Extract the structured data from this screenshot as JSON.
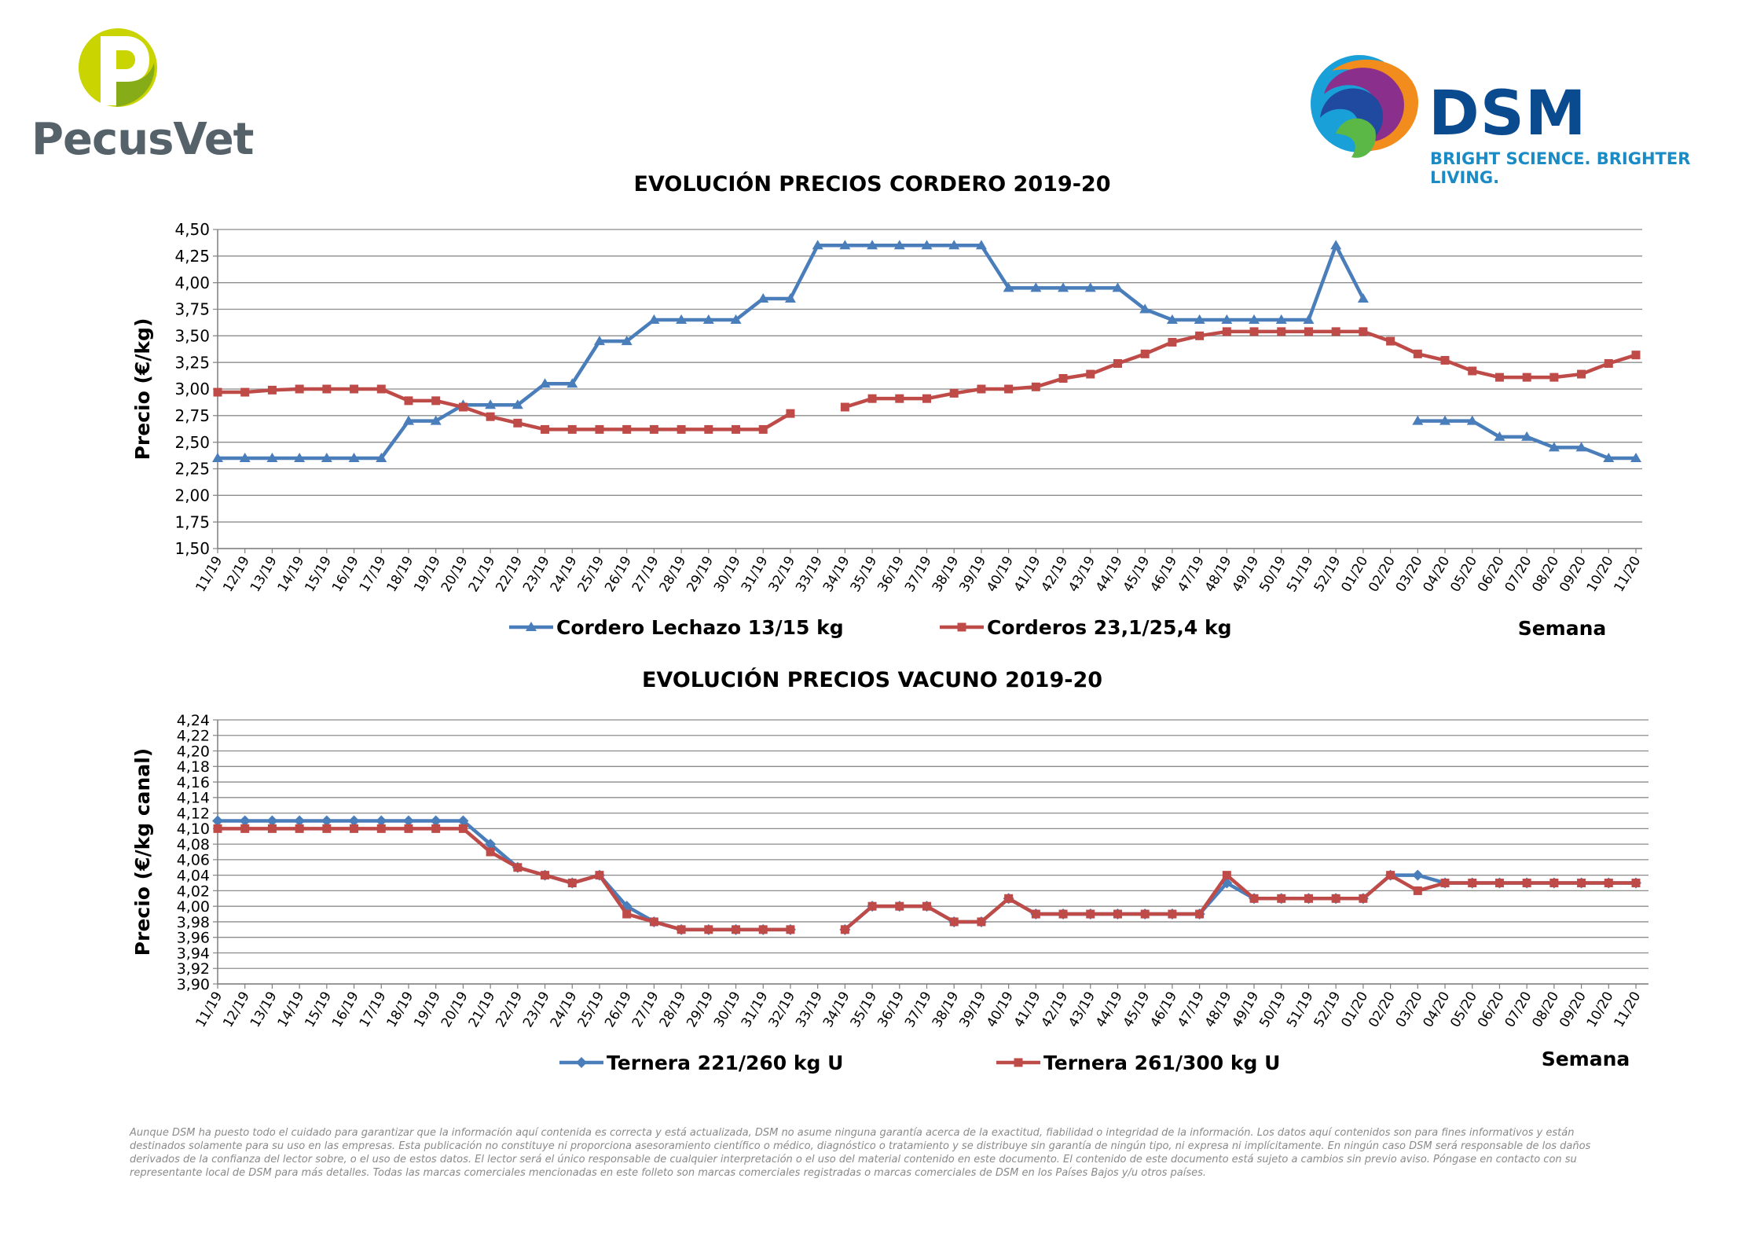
{
  "logos": {
    "pecusvet": {
      "name": "PecusVet",
      "icon": "pecusvet-p-logo-icon",
      "colors": [
        "#a7c41f",
        "#55626a"
      ]
    },
    "dsm": {
      "name": "DSM",
      "tagline": "BRIGHT SCIENCE. BRIGHTER LIVING.",
      "icon": "dsm-swirl-logo-icon",
      "colors": [
        "#0a4a8f",
        "#1a8bc4"
      ]
    }
  },
  "chart_data": [
    {
      "type": "line",
      "title": "EVOLUCIÓN PRECIOS CORDERO 2019-20",
      "ylabel": "Precio (€/kg)",
      "xlabel": "Semana",
      "ylim": [
        1.5,
        4.5
      ],
      "yticks": [
        "1,50",
        "1,75",
        "2,00",
        "2,25",
        "2,50",
        "2,75",
        "3,00",
        "3,25",
        "3,50",
        "3,75",
        "4,00",
        "4,25",
        "4,50"
      ],
      "grid": true,
      "legend_position": "bottom",
      "categories": [
        "11/19",
        "12/19",
        "13/19",
        "14/19",
        "15/19",
        "16/19",
        "17/19",
        "18/19",
        "19/19",
        "20/19",
        "21/19",
        "22/19",
        "23/19",
        "24/19",
        "25/19",
        "26/19",
        "27/19",
        "28/19",
        "29/19",
        "30/19",
        "31/19",
        "32/19",
        "33/19",
        "34/19",
        "35/19",
        "36/19",
        "37/19",
        "38/19",
        "39/19",
        "40/19",
        "41/19",
        "42/19",
        "43/19",
        "44/19",
        "45/19",
        "46/19",
        "47/19",
        "48/19",
        "49/19",
        "50/19",
        "51/19",
        "52/19",
        "01/20",
        "02/20",
        "03/20",
        "04/20",
        "05/20",
        "06/20",
        "07/20",
        "08/20",
        "09/20",
        "10/20",
        "11/20"
      ],
      "series": [
        {
          "name": "Cordero Lechazo 13/15 kg",
          "color": "#4a7ebb",
          "marker": "triangle",
          "values": [
            2.35,
            2.35,
            2.35,
            2.35,
            2.35,
            2.35,
            2.35,
            2.7,
            2.7,
            2.85,
            2.85,
            2.85,
            3.05,
            3.05,
            3.45,
            3.45,
            3.65,
            3.65,
            3.65,
            3.65,
            3.85,
            3.85,
            4.35,
            4.35,
            4.35,
            4.35,
            4.35,
            4.35,
            4.35,
            3.95,
            3.95,
            3.95,
            3.95,
            3.95,
            3.75,
            3.65,
            3.65,
            3.65,
            3.65,
            3.65,
            3.65,
            4.35,
            3.85,
            null,
            2.7,
            2.7,
            2.7,
            2.55,
            2.55,
            2.45,
            2.45,
            2.35,
            2.35
          ]
        },
        {
          "name": "Corderos 23,1/25,4 kg",
          "color": "#be4b48",
          "marker": "square",
          "values": [
            2.97,
            2.97,
            2.99,
            3.0,
            3.0,
            3.0,
            3.0,
            2.89,
            2.89,
            2.83,
            2.74,
            2.68,
            2.62,
            2.62,
            2.62,
            2.62,
            2.62,
            2.62,
            2.62,
            2.62,
            2.62,
            2.77,
            null,
            2.83,
            2.91,
            2.91,
            2.91,
            2.96,
            3.0,
            3.0,
            3.02,
            3.1,
            3.14,
            3.24,
            3.33,
            3.44,
            3.5,
            3.54,
            3.54,
            3.54,
            3.54,
            3.54,
            3.54,
            3.45,
            3.33,
            3.27,
            3.17,
            3.11,
            3.11,
            3.11,
            3.14,
            3.24,
            3.32
          ]
        }
      ]
    },
    {
      "type": "line",
      "title": "EVOLUCIÓN PRECIOS VACUNO 2019-20",
      "ylabel": "Precio (€/kg canal)",
      "xlabel": "Semana",
      "ylim": [
        3.9,
        4.24
      ],
      "yticks": [
        "3,90",
        "3,92",
        "3,94",
        "3,96",
        "3,98",
        "4,00",
        "4,02",
        "4,04",
        "4,06",
        "4,08",
        "4,10",
        "4,12",
        "4,14",
        "4,16",
        "4,18",
        "4,20",
        "4,22",
        "4,24"
      ],
      "grid": true,
      "legend_position": "bottom",
      "categories": [
        "11/19",
        "12/19",
        "13/19",
        "14/19",
        "15/19",
        "16/19",
        "17/19",
        "18/19",
        "19/19",
        "20/19",
        "21/19",
        "22/19",
        "23/19",
        "24/19",
        "25/19",
        "26/19",
        "27/19",
        "28/19",
        "29/19",
        "30/19",
        "31/19",
        "32/19",
        "33/19",
        "34/19",
        "35/19",
        "36/19",
        "37/19",
        "38/19",
        "39/19",
        "40/19",
        "41/19",
        "42/19",
        "43/19",
        "44/19",
        "45/19",
        "46/19",
        "47/19",
        "48/19",
        "49/19",
        "50/19",
        "51/19",
        "52/19",
        "01/20",
        "02/20",
        "03/20",
        "04/20",
        "05/20",
        "06/20",
        "07/20",
        "08/20",
        "09/20",
        "10/20",
        "11/20"
      ],
      "series": [
        {
          "name": "Ternera 221/260 kg U",
          "color": "#4a7ebb",
          "marker": "diamond",
          "values": [
            4.11,
            4.11,
            4.11,
            4.11,
            4.11,
            4.11,
            4.11,
            4.11,
            4.11,
            4.11,
            4.08,
            4.05,
            4.04,
            4.03,
            4.04,
            4.0,
            3.98,
            3.97,
            3.97,
            3.97,
            3.97,
            3.97,
            null,
            3.97,
            4.0,
            4.0,
            4.0,
            3.98,
            3.98,
            4.01,
            3.99,
            3.99,
            3.99,
            3.99,
            3.99,
            3.99,
            3.99,
            4.03,
            4.01,
            4.01,
            4.01,
            4.01,
            4.01,
            4.04,
            4.04,
            4.03,
            4.03,
            4.03,
            4.03,
            4.03,
            4.03,
            4.03,
            4.03
          ]
        },
        {
          "name": "Ternera 261/300 kg U",
          "color": "#be4b48",
          "marker": "square",
          "values": [
            4.1,
            4.1,
            4.1,
            4.1,
            4.1,
            4.1,
            4.1,
            4.1,
            4.1,
            4.1,
            4.07,
            4.05,
            4.04,
            4.03,
            4.04,
            3.99,
            3.98,
            3.97,
            3.97,
            3.97,
            3.97,
            3.97,
            null,
            3.97,
            4.0,
            4.0,
            4.0,
            3.98,
            3.98,
            4.01,
            3.99,
            3.99,
            3.99,
            3.99,
            3.99,
            3.99,
            3.99,
            4.04,
            4.01,
            4.01,
            4.01,
            4.01,
            4.01,
            4.04,
            4.02,
            4.03,
            4.03,
            4.03,
            4.03,
            4.03,
            4.03,
            4.03,
            4.03
          ]
        }
      ]
    }
  ],
  "disclaimer": "Aunque DSM ha puesto todo el cuidado para garantizar que la información aquí contenida es correcta y está actualizada, DSM no asume ninguna garantía acerca de la exactitud, fiabilidad o integridad de la información. Los datos aquí contenidos son para fines informativos y están destinados solamente para su uso en las empresas. Esta publicación no constituye ni proporciona asesoramiento científico o médico, diagnóstico o tratamiento y se distribuye sin garantía de ningún tipo, ni expresa ni implícitamente. En ningún caso DSM será responsable de los daños derivados de la confianza del lector sobre, o el uso de estos datos. El lector será el único responsable de cualquier interpretación o el uso del material contenido en este documento. El contenido de este documento está sujeto a cambios sin previo aviso. Póngase en contacto con su representante local de DSM para más detalles. Todas las marcas comerciales mencionadas en este folleto son marcas comerciales registradas o marcas comerciales de DSM en los Países Bajos y/u otros países."
}
